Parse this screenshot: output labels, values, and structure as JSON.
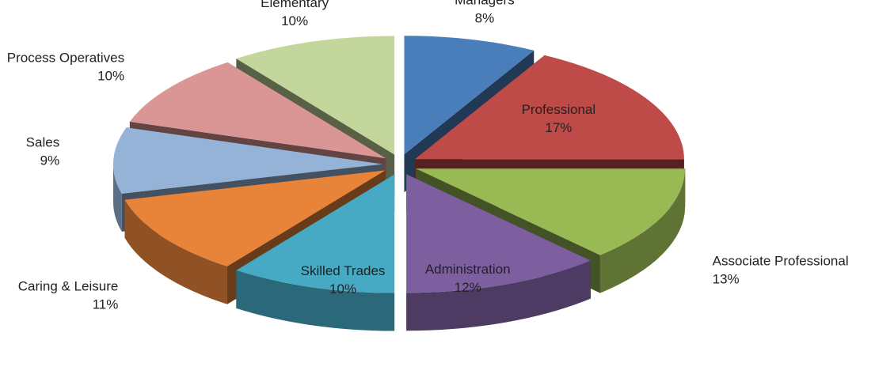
{
  "chart_data": {
    "type": "pie3d",
    "categories": [
      "Managers",
      "Professional",
      "Associate Professional",
      "Administration",
      "Skilled Trades",
      "Caring & Leisure",
      "Sales",
      "Process Operatives",
      "Elementary"
    ],
    "values": [
      8,
      17,
      13,
      12,
      10,
      11,
      9,
      10,
      10
    ],
    "value_labels": [
      "8%",
      "17%",
      "13%",
      "12%",
      "10%",
      "11%",
      "9%",
      "10%",
      "10%"
    ],
    "colors": [
      "#4a7ebb",
      "#be4b48",
      "#98b954",
      "#7d5fa0",
      "#46aac5",
      "#e8833a",
      "#95b3d7",
      "#d99694",
      "#c3d69b"
    ]
  }
}
